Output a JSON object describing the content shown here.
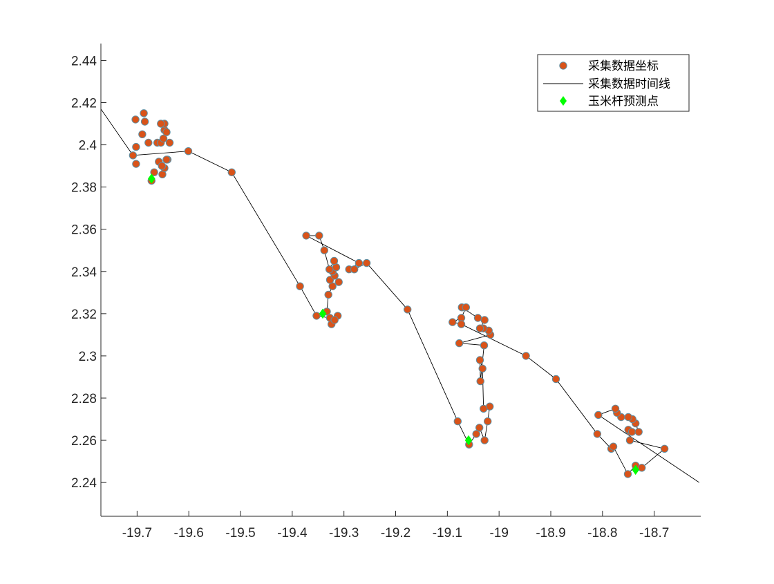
{
  "chart_data": {
    "type": "scatter",
    "title": "",
    "xlabel": "",
    "ylabel": "",
    "xlim": [
      -19.77,
      -18.61
    ],
    "ylim": [
      2.224,
      2.448
    ],
    "grid": false,
    "legend_position": "top-right",
    "xticks": [
      -19.7,
      -19.6,
      -19.5,
      -19.4,
      -19.3,
      -19.2,
      -19.1,
      -19,
      -18.9,
      -18.8,
      -18.7
    ],
    "xtick_labels": [
      "-19.7",
      "-19.6",
      "-19.5",
      "-19.4",
      "-19.3",
      "-19.2",
      "-19.1",
      "-19",
      "-18.9",
      "-18.8",
      "-18.7"
    ],
    "yticks": [
      2.24,
      2.26,
      2.28,
      2.3,
      2.32,
      2.34,
      2.36,
      2.38,
      2.4,
      2.42,
      2.44
    ],
    "ytick_labels": [
      "2.24",
      "2.26",
      "2.28",
      "2.3",
      "2.32",
      "2.34",
      "2.36",
      "2.38",
      "2.4",
      "2.42",
      "2.44"
    ],
    "colors": {
      "marker_fill": "#d95319",
      "marker_edge": "#5f8fa3",
      "line": "#000000",
      "predicted": "#00ff00",
      "axes": "#262626"
    },
    "series": [
      {
        "name": "采集数据坐标",
        "kind": "markers",
        "points": [
          [
            -19.672,
            2.383
          ],
          [
            -19.667,
            2.387
          ],
          [
            -19.658,
            2.392
          ],
          [
            -19.651,
            2.386
          ],
          [
            -19.647,
            2.389
          ],
          [
            -19.641,
            2.393
          ],
          [
            -19.652,
            2.39
          ],
          [
            -19.643,
            2.393
          ],
          [
            -19.661,
            2.401
          ],
          [
            -19.654,
            2.401
          ],
          [
            -19.637,
            2.401
          ],
          [
            -19.649,
            2.403
          ],
          [
            -19.647,
            2.407
          ],
          [
            -19.643,
            2.406
          ],
          [
            -19.647,
            2.41
          ],
          [
            -19.654,
            2.41
          ],
          [
            -19.687,
            2.415
          ],
          [
            -19.703,
            2.412
          ],
          [
            -19.685,
            2.411
          ],
          [
            -19.69,
            2.405
          ],
          [
            -19.678,
            2.401
          ],
          [
            -19.702,
            2.399
          ],
          [
            -19.708,
            2.395
          ],
          [
            -19.702,
            2.391
          ],
          [
            -19.601,
            2.397
          ],
          [
            -19.517,
            2.387
          ],
          [
            -19.385,
            2.333
          ],
          [
            -19.353,
            2.319
          ],
          [
            -19.327,
            2.318
          ],
          [
            -19.324,
            2.315
          ],
          [
            -19.312,
            2.319
          ],
          [
            -19.318,
            2.317
          ],
          [
            -19.333,
            2.321
          ],
          [
            -19.33,
            2.329
          ],
          [
            -19.322,
            2.333
          ],
          [
            -19.327,
            2.336
          ],
          [
            -19.318,
            2.338
          ],
          [
            -19.31,
            2.335
          ],
          [
            -19.322,
            2.34
          ],
          [
            -19.315,
            2.342
          ],
          [
            -19.319,
            2.345
          ],
          [
            -19.328,
            2.341
          ],
          [
            -19.338,
            2.35
          ],
          [
            -19.348,
            2.357
          ],
          [
            -19.373,
            2.357
          ],
          [
            -19.29,
            2.341
          ],
          [
            -19.28,
            2.341
          ],
          [
            -19.271,
            2.344
          ],
          [
            -19.256,
            2.344
          ],
          [
            -19.177,
            2.322
          ],
          [
            -19.08,
            2.269
          ],
          [
            -19.058,
            2.258
          ],
          [
            -19.044,
            2.263
          ],
          [
            -19.038,
            2.266
          ],
          [
            -19.028,
            2.26
          ],
          [
            -19.022,
            2.269
          ],
          [
            -19.018,
            2.276
          ],
          [
            -19.03,
            2.275
          ],
          [
            -19.032,
            2.294
          ],
          [
            -19.037,
            2.298
          ],
          [
            -19.036,
            2.288
          ],
          [
            -19.029,
            2.305
          ],
          [
            -19.077,
            2.306
          ],
          [
            -19.017,
            2.31
          ],
          [
            -19.02,
            2.312
          ],
          [
            -19.03,
            2.313
          ],
          [
            -19.037,
            2.313
          ],
          [
            -19.028,
            2.317
          ],
          [
            -19.041,
            2.318
          ],
          [
            -19.072,
            2.323
          ],
          [
            -19.064,
            2.323
          ],
          [
            -19.073,
            2.318
          ],
          [
            -19.09,
            2.316
          ],
          [
            -19.073,
            2.315
          ],
          [
            -18.948,
            2.3
          ],
          [
            -18.89,
            2.289
          ],
          [
            -18.81,
            2.263
          ],
          [
            -18.783,
            2.256
          ],
          [
            -18.779,
            2.257
          ],
          [
            -18.751,
            2.244
          ],
          [
            -18.736,
            2.248
          ],
          [
            -18.724,
            2.247
          ],
          [
            -18.68,
            2.256
          ],
          [
            -18.747,
            2.26
          ],
          [
            -18.747,
            2.264
          ],
          [
            -18.75,
            2.265
          ],
          [
            -18.743,
            2.264
          ],
          [
            -18.73,
            2.264
          ],
          [
            -18.736,
            2.268
          ],
          [
            -18.742,
            2.27
          ],
          [
            -18.75,
            2.271
          ],
          [
            -18.764,
            2.271
          ],
          [
            -18.772,
            2.273
          ],
          [
            -18.775,
            2.275
          ],
          [
            -18.808,
            2.272
          ]
        ]
      },
      {
        "name": "采集数据时间线",
        "kind": "line",
        "points": [
          [
            -19.77,
            2.417
          ],
          [
            -19.708,
            2.395
          ],
          [
            -19.601,
            2.397
          ],
          [
            -19.517,
            2.387
          ],
          [
            -19.385,
            2.333
          ],
          [
            -19.353,
            2.319
          ],
          [
            -19.327,
            2.318
          ],
          [
            -19.324,
            2.315
          ],
          [
            -19.312,
            2.319
          ],
          [
            -19.318,
            2.317
          ],
          [
            -19.333,
            2.321
          ],
          [
            -19.33,
            2.329
          ],
          [
            -19.322,
            2.333
          ],
          [
            -19.327,
            2.336
          ],
          [
            -19.318,
            2.338
          ],
          [
            -19.31,
            2.335
          ],
          [
            -19.322,
            2.34
          ],
          [
            -19.315,
            2.342
          ],
          [
            -19.319,
            2.345
          ],
          [
            -19.328,
            2.341
          ],
          [
            -19.338,
            2.35
          ],
          [
            -19.348,
            2.357
          ],
          [
            -19.373,
            2.357
          ],
          [
            -19.271,
            2.344
          ],
          [
            -19.29,
            2.341
          ],
          [
            -19.28,
            2.341
          ],
          [
            -19.256,
            2.344
          ],
          [
            -19.177,
            2.322
          ],
          [
            -19.08,
            2.269
          ],
          [
            -19.058,
            2.258
          ],
          [
            -19.044,
            2.263
          ],
          [
            -19.038,
            2.266
          ],
          [
            -19.028,
            2.26
          ],
          [
            -19.022,
            2.269
          ],
          [
            -19.018,
            2.276
          ],
          [
            -19.03,
            2.275
          ],
          [
            -19.032,
            2.294
          ],
          [
            -19.037,
            2.298
          ],
          [
            -19.036,
            2.288
          ],
          [
            -19.029,
            2.305
          ],
          [
            -19.077,
            2.306
          ],
          [
            -19.017,
            2.31
          ],
          [
            -19.02,
            2.312
          ],
          [
            -19.03,
            2.313
          ],
          [
            -19.037,
            2.313
          ],
          [
            -19.028,
            2.317
          ],
          [
            -19.041,
            2.318
          ],
          [
            -19.072,
            2.323
          ],
          [
            -19.064,
            2.323
          ],
          [
            -19.073,
            2.318
          ],
          [
            -19.09,
            2.316
          ],
          [
            -19.073,
            2.315
          ],
          [
            -18.948,
            2.3
          ],
          [
            -18.89,
            2.289
          ],
          [
            -18.81,
            2.263
          ],
          [
            -18.783,
            2.256
          ],
          [
            -18.779,
            2.257
          ],
          [
            -18.751,
            2.244
          ],
          [
            -18.736,
            2.248
          ],
          [
            -18.724,
            2.247
          ],
          [
            -18.68,
            2.256
          ],
          [
            -18.747,
            2.26
          ],
          [
            -18.747,
            2.264
          ],
          [
            -18.75,
            2.265
          ],
          [
            -18.743,
            2.264
          ],
          [
            -18.73,
            2.264
          ],
          [
            -18.736,
            2.268
          ],
          [
            -18.742,
            2.27
          ],
          [
            -18.75,
            2.271
          ],
          [
            -18.764,
            2.271
          ],
          [
            -18.772,
            2.273
          ],
          [
            -18.775,
            2.275
          ],
          [
            -18.808,
            2.272
          ],
          [
            -18.613,
            2.24
          ]
        ]
      },
      {
        "name": "玉米杆预测点",
        "kind": "predicted",
        "points": [
          [
            -19.672,
            2.384
          ],
          [
            -19.341,
            2.32
          ],
          [
            -19.059,
            2.26
          ],
          [
            -18.736,
            2.246
          ]
        ]
      }
    ]
  }
}
